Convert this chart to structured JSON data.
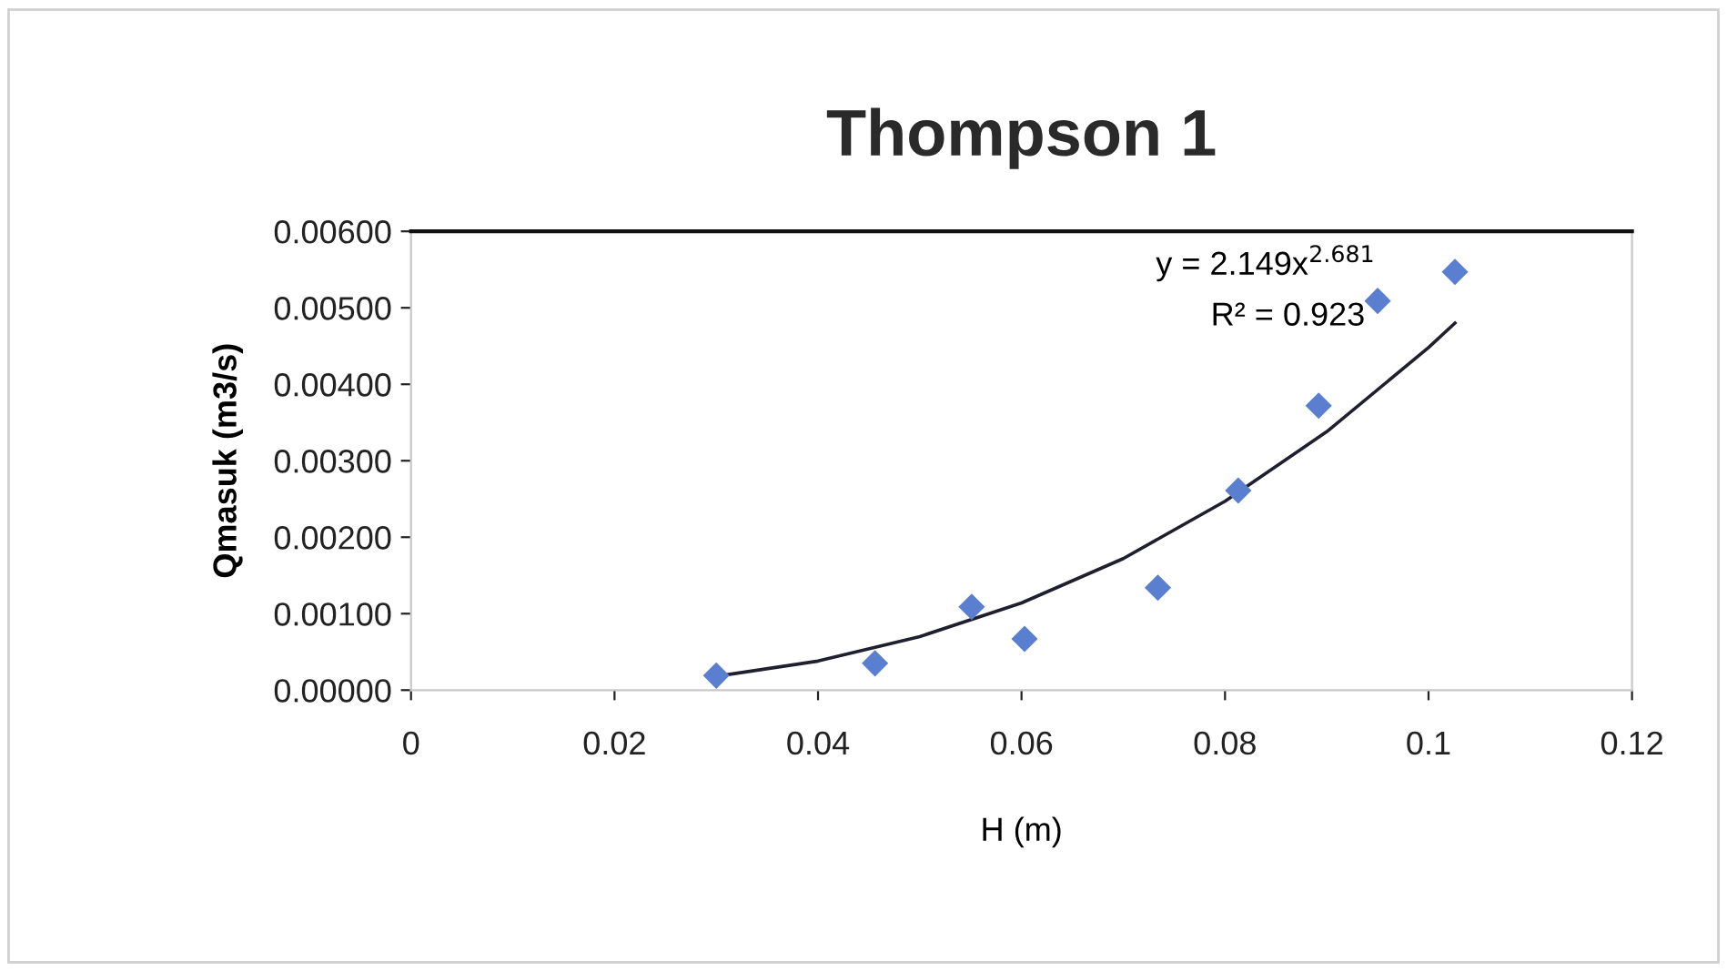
{
  "chart_data": {
    "type": "scatter",
    "title": "Thompson 1",
    "xlabel": "H (m)",
    "ylabel": "Qmasuk (m3/s)",
    "series": [
      {
        "color": "#5b7fd0",
        "marker": "diamond",
        "x": [
          0.03,
          0.0456,
          0.0551,
          0.0603,
          0.0734,
          0.0813,
          0.0892,
          0.095,
          0.1026
        ],
        "values": [
          0.00019,
          0.00035,
          0.00109,
          0.00067,
          0.00134,
          0.00261,
          0.00372,
          0.00509,
          0.00547
        ]
      },
      {
        "type": "line",
        "color": "#1f1f2f",
        "x": [
          0.03,
          0.04,
          0.05,
          0.06,
          0.07,
          0.08,
          0.09,
          0.1,
          0.1026
        ],
        "values": [
          0.00018,
          0.00038,
          0.0007,
          0.00114,
          0.00172,
          0.00247,
          0.00338,
          0.00448,
          0.0048
        ]
      }
    ],
    "annotations": [
      "y = 2.149x$^{2.681}$",
      "R² = 0.923"
    ],
    "xlim": [
      0,
      0.12
    ],
    "xticks": [
      0,
      0.02,
      0.04,
      0.06,
      0.08,
      {
        "value": 0.1,
        "label": "0.1"
      },
      0.12
    ],
    "ylim": [
      0,
      0.006
    ],
    "yticks": [
      {
        "value": 0,
        "label": "0.00000"
      },
      {
        "value": 0.001,
        "label": "0.00100"
      },
      {
        "value": 0.002,
        "label": "0.00200"
      },
      {
        "value": 0.003,
        "label": "0.00300"
      },
      {
        "value": 0.004,
        "label": "0.00400"
      },
      {
        "value": 0.005,
        "label": "0.00500"
      },
      {
        "value": 0.006,
        "label": "0.00600"
      }
    ],
    "grid": false,
    "legend": false
  }
}
